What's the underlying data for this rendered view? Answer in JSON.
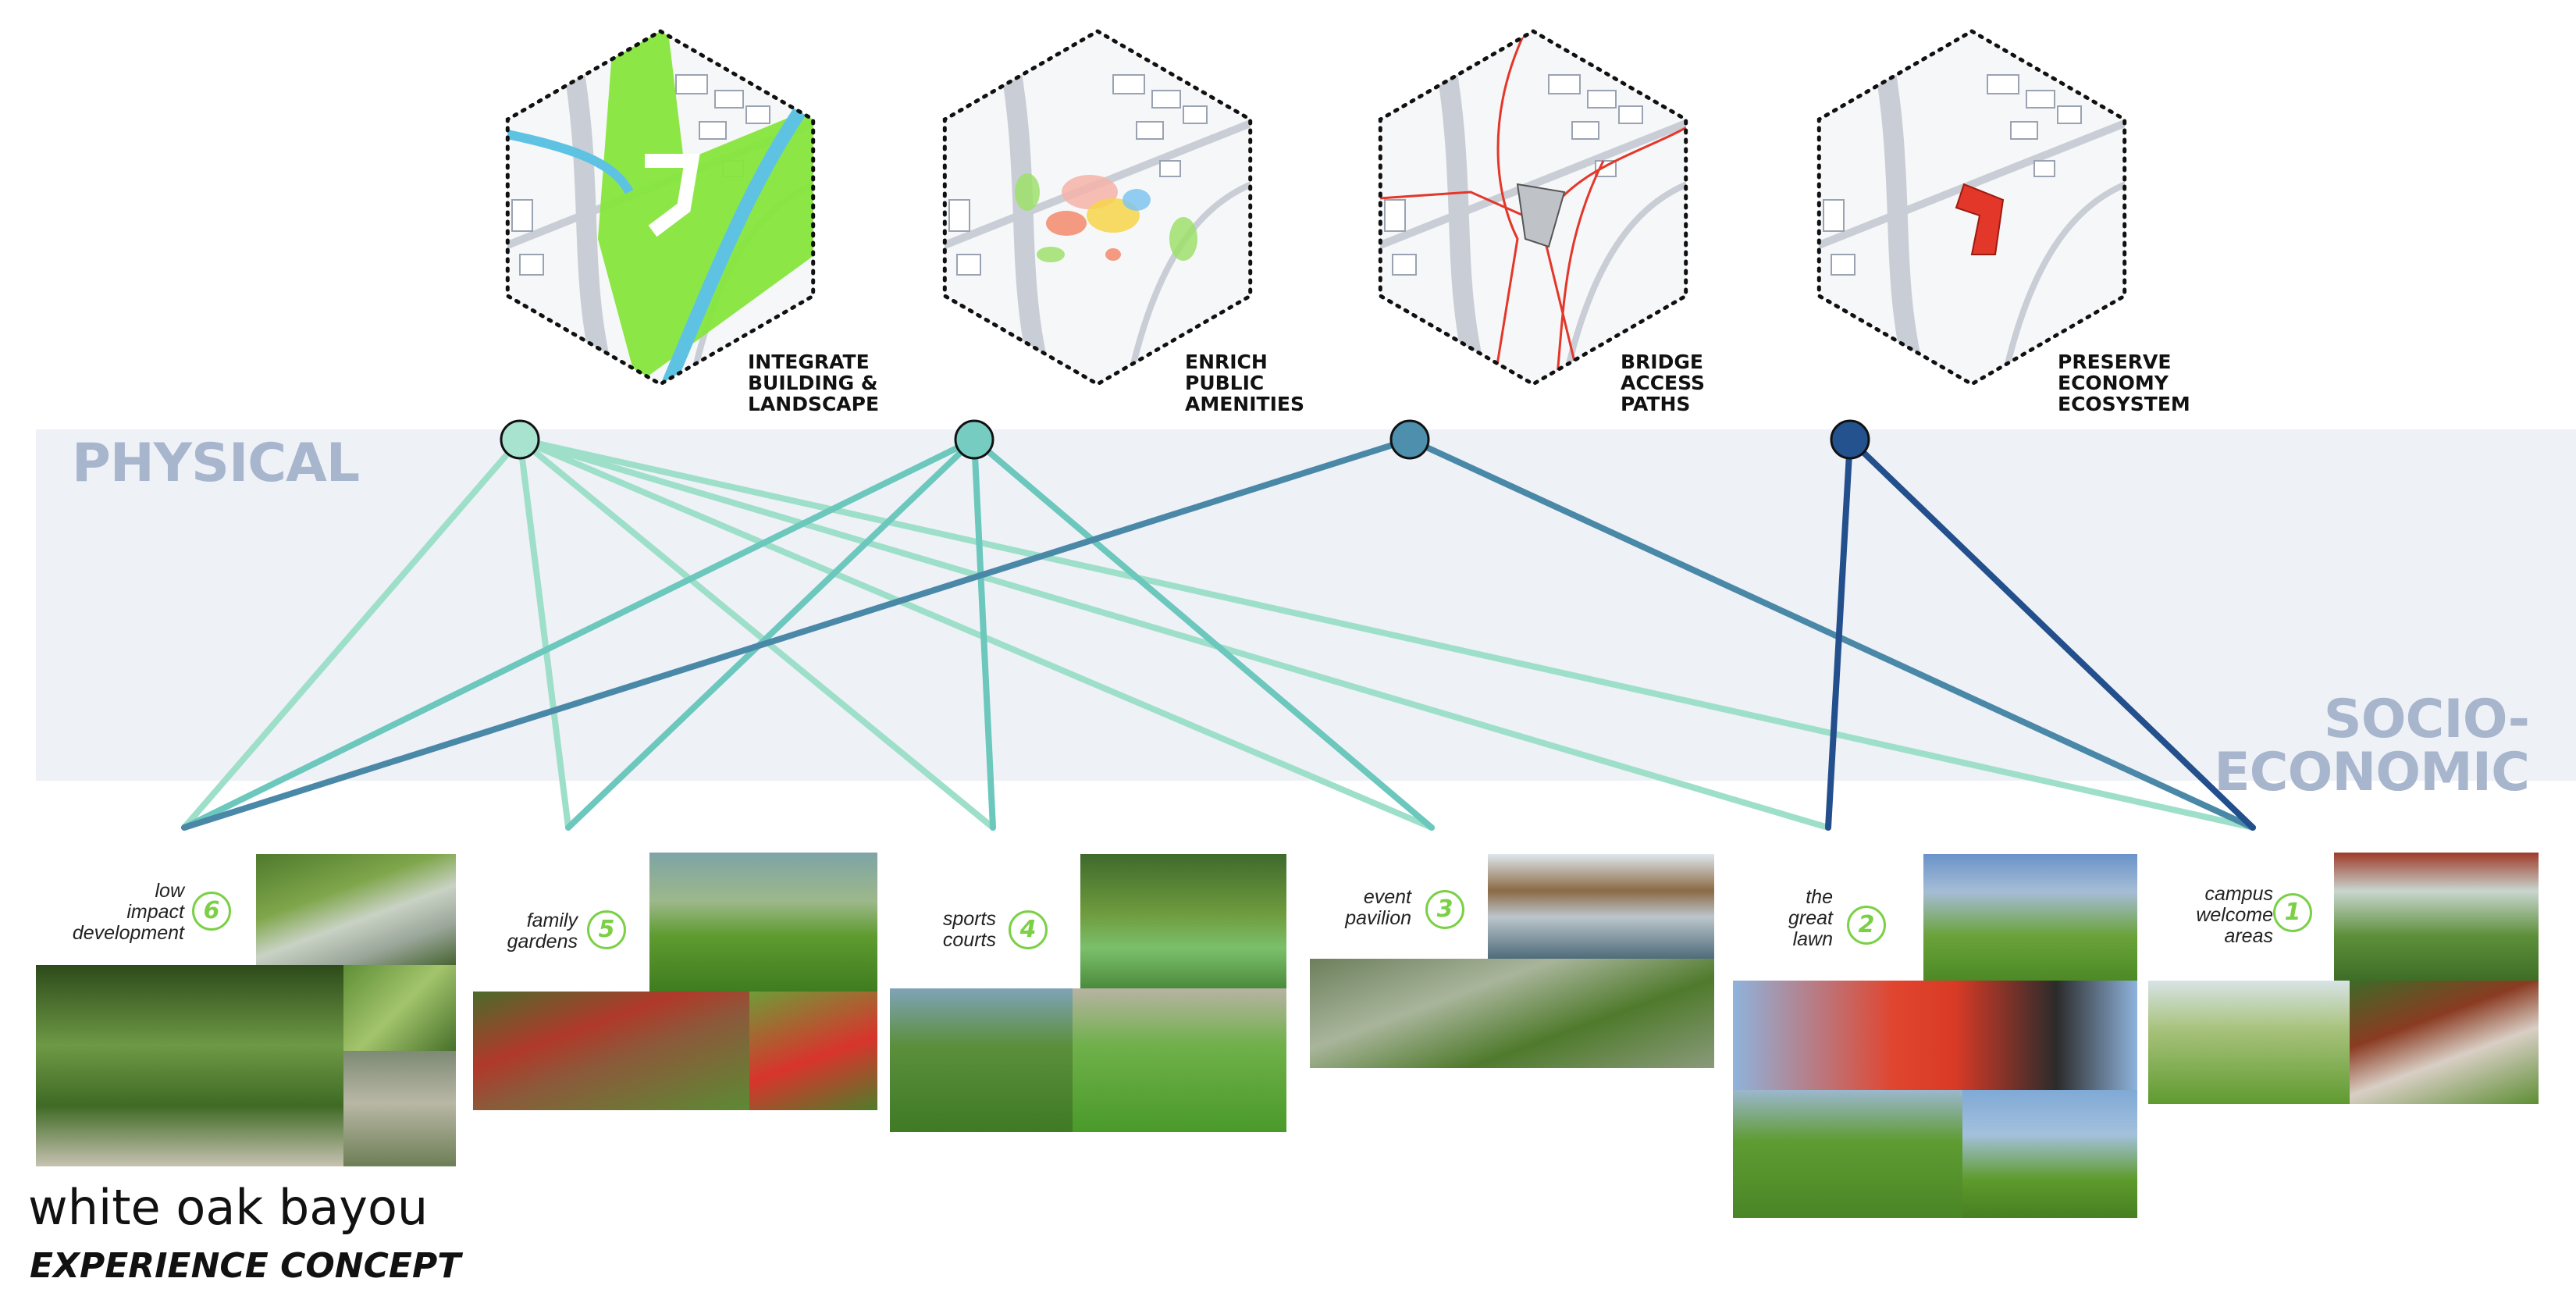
{
  "colors": {
    "band": "#eef1f6",
    "band_text": "#a7b5cd",
    "line_light": "#9edfc9",
    "line_mid": "#6cc7bd",
    "line_dark": "#4a88a8",
    "line_navy": "#234f8c",
    "number_green": "#7bd046"
  },
  "band": {
    "physical_label": "PHYSICAL",
    "socio_label_1": "SOCIO-",
    "socio_label_2": "ECONOMIC"
  },
  "strategies": [
    {
      "label": "INTEGRATE\nBUILDING &\nLANDSCAPE",
      "node_color": "#a8e3cf",
      "line_color": "#9edfc9",
      "map_theme": "green"
    },
    {
      "label": "ENRICH\nPUBLIC\nAMENITIES",
      "node_color": "#77ccc2",
      "line_color": "#6cc7bd",
      "map_theme": "amenities"
    },
    {
      "label": "BRIDGE\nACCESS\nPATHS",
      "node_color": "#4d8fad",
      "line_color": "#4a88a8",
      "map_theme": "paths"
    },
    {
      "label": "PRESERVE\nECONOMY\nECOSYSTEM",
      "node_color": "#24528f",
      "line_color": "#234f8c",
      "map_theme": "economy"
    }
  ],
  "experiences": [
    {
      "number": "6",
      "label": "low\nimpact\ndevelopment"
    },
    {
      "number": "5",
      "label": "family\ngardens"
    },
    {
      "number": "4",
      "label": "sports\ncourts"
    },
    {
      "number": "3",
      "label": "event\npavilion"
    },
    {
      "number": "2",
      "label": "the\ngreat\nlawn"
    },
    {
      "number": "1",
      "label": "campus\nwelcome\nareas"
    }
  ],
  "connections": [
    {
      "from": 0,
      "to": 0
    },
    {
      "from": 0,
      "to": 1
    },
    {
      "from": 0,
      "to": 2
    },
    {
      "from": 0,
      "to": 3
    },
    {
      "from": 0,
      "to": 4
    },
    {
      "from": 0,
      "to": 5
    },
    {
      "from": 1,
      "to": 0
    },
    {
      "from": 1,
      "to": 1
    },
    {
      "from": 1,
      "to": 2
    },
    {
      "from": 1,
      "to": 3
    },
    {
      "from": 2,
      "to": 0
    },
    {
      "from": 2,
      "to": 5
    },
    {
      "from": 3,
      "to": 4
    },
    {
      "from": 3,
      "to": 5
    }
  ],
  "title": {
    "main": "white oak bayou",
    "sub": "EXPERIENCE CONCEPT"
  }
}
